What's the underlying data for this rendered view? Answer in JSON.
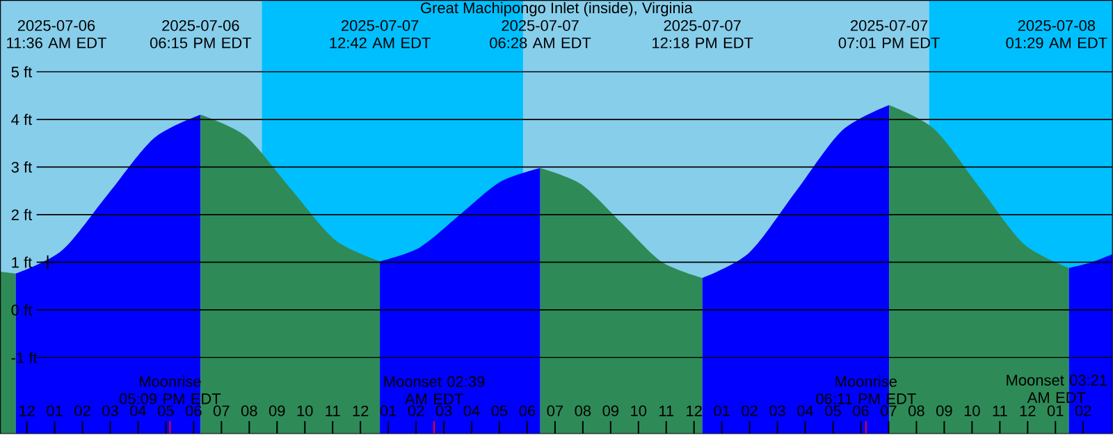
{
  "chart_data": {
    "type": "area",
    "title": "Great Machipongo Inlet (inside), Virginia",
    "xlim": [
      "2025-07-06T11:03",
      "2025-07-08T03:03"
    ],
    "ylim": [
      -2.6,
      6.5
    ],
    "xticks": [
      {
        "value": "2025-07-06T12:00",
        "label": "12"
      },
      {
        "value": "2025-07-06T13:00",
        "label": "01"
      },
      {
        "value": "2025-07-06T14:00",
        "label": "02"
      },
      {
        "value": "2025-07-06T15:00",
        "label": "03"
      },
      {
        "value": "2025-07-06T16:00",
        "label": "04"
      },
      {
        "value": "2025-07-06T17:00",
        "label": "05"
      },
      {
        "value": "2025-07-06T18:00",
        "label": "06"
      },
      {
        "value": "2025-07-06T19:00",
        "label": "07"
      },
      {
        "value": "2025-07-06T20:00",
        "label": "08"
      },
      {
        "value": "2025-07-06T21:00",
        "label": "09"
      },
      {
        "value": "2025-07-06T22:00",
        "label": "10"
      },
      {
        "value": "2025-07-06T23:00",
        "label": "11"
      },
      {
        "value": "2025-07-07T00:00",
        "label": "12"
      },
      {
        "value": "2025-07-07T01:00",
        "label": "01"
      },
      {
        "value": "2025-07-07T02:00",
        "label": "02"
      },
      {
        "value": "2025-07-07T03:00",
        "label": "03"
      },
      {
        "value": "2025-07-07T04:00",
        "label": "04"
      },
      {
        "value": "2025-07-07T05:00",
        "label": "05"
      },
      {
        "value": "2025-07-07T06:00",
        "label": "06"
      },
      {
        "value": "2025-07-07T07:00",
        "label": "07"
      },
      {
        "value": "2025-07-07T08:00",
        "label": "08"
      },
      {
        "value": "2025-07-07T09:00",
        "label": "09"
      },
      {
        "value": "2025-07-07T10:00",
        "label": "10"
      },
      {
        "value": "2025-07-07T11:00",
        "label": "11"
      },
      {
        "value": "2025-07-07T12:00",
        "label": "12"
      },
      {
        "value": "2025-07-07T13:00",
        "label": "01"
      },
      {
        "value": "2025-07-07T14:00",
        "label": "02"
      },
      {
        "value": "2025-07-07T15:00",
        "label": "03"
      },
      {
        "value": "2025-07-07T16:00",
        "label": "04"
      },
      {
        "value": "2025-07-07T17:00",
        "label": "05"
      },
      {
        "value": "2025-07-07T18:00",
        "label": "06"
      },
      {
        "value": "2025-07-07T19:00",
        "label": "07"
      },
      {
        "value": "2025-07-07T20:00",
        "label": "08"
      },
      {
        "value": "2025-07-07T21:00",
        "label": "09"
      },
      {
        "value": "2025-07-07T22:00",
        "label": "10"
      },
      {
        "value": "2025-07-07T23:00",
        "label": "11"
      },
      {
        "value": "2025-07-08T00:00",
        "label": "12"
      },
      {
        "value": "2025-07-08T01:00",
        "label": "01"
      },
      {
        "value": "2025-07-08T02:00",
        "label": "02"
      }
    ],
    "yticks": [
      {
        "value": -1,
        "label": "-1 ft"
      },
      {
        "value": 0,
        "label": "0 ft"
      },
      {
        "value": 1,
        "label": "1 ft"
      },
      {
        "value": 2,
        "label": "2 ft"
      },
      {
        "value": 3,
        "label": "3 ft"
      },
      {
        "value": 4,
        "label": "4 ft"
      },
      {
        "value": 5,
        "label": "5 ft"
      }
    ],
    "grid": "y",
    "bands": [
      {
        "axis": "x",
        "from": "2025-07-06T11:03",
        "to": "2025-07-06T20:27",
        "color": "#87ceeb"
      },
      {
        "axis": "x",
        "from": "2025-07-06T20:27",
        "to": "2025-07-07T05:51",
        "color": "#00bfff"
      },
      {
        "axis": "x",
        "from": "2025-07-07T05:51",
        "to": "2025-07-07T20:27",
        "color": "#87ceeb"
      },
      {
        "axis": "x",
        "from": "2025-07-07T20:27",
        "to": "2025-07-08T03:03",
        "color": "#00bfff"
      }
    ],
    "series": [
      {
        "color": "#2e8b57",
        "x": [
          "2025-07-06T11:03",
          "2025-07-06T11:36"
        ],
        "values": [
          0.8,
          0.76
        ]
      },
      {
        "color": "#0000ff",
        "x": [
          "2025-07-06T11:36",
          "2025-07-06T13:16",
          "2025-07-06T14:55",
          "2025-07-06T16:35",
          "2025-07-06T18:15"
        ],
        "values": [
          0.76,
          1.25,
          2.43,
          3.61,
          4.1
        ]
      },
      {
        "color": "#2e8b57",
        "x": [
          "2025-07-06T18:15",
          "2025-07-06T19:52",
          "2025-07-06T21:28",
          "2025-07-06T23:05",
          "2025-07-07T00:42"
        ],
        "values": [
          4.1,
          3.65,
          2.56,
          1.47,
          1.02
        ]
      },
      {
        "color": "#0000ff",
        "x": [
          "2025-07-07T00:42",
          "2025-07-07T02:08",
          "2025-07-07T03:35",
          "2025-07-07T05:02",
          "2025-07-07T06:28"
        ],
        "values": [
          1.02,
          1.31,
          2.0,
          2.69,
          2.98
        ]
      },
      {
        "color": "#2e8b57",
        "x": [
          "2025-07-07T06:28",
          "2025-07-07T07:56",
          "2025-07-07T09:23",
          "2025-07-07T10:50",
          "2025-07-07T12:18"
        ],
        "values": [
          2.98,
          2.64,
          1.83,
          1.01,
          0.67
        ]
      },
      {
        "color": "#0000ff",
        "x": [
          "2025-07-07T12:18",
          "2025-07-07T13:59",
          "2025-07-07T15:40",
          "2025-07-07T17:20",
          "2025-07-07T19:01"
        ],
        "values": [
          0.67,
          1.2,
          2.49,
          3.77,
          4.3
        ]
      },
      {
        "color": "#2e8b57",
        "x": [
          "2025-07-07T19:01",
          "2025-07-07T20:38",
          "2025-07-07T22:15",
          "2025-07-07T23:52",
          "2025-07-08T01:29"
        ],
        "values": [
          4.3,
          3.8,
          2.59,
          1.38,
          0.88
        ]
      },
      {
        "color": "#0000ff",
        "x": [
          "2025-07-08T01:29",
          "2025-07-08T02:18",
          "2025-07-08T03:03"
        ],
        "values": [
          0.88,
          1.0,
          1.17
        ]
      },
      {
        "type": "scatter",
        "color": "#000000",
        "marker": "cross",
        "x": [
          "2025-07-06T12:45"
        ],
        "values": [
          1
        ]
      }
    ],
    "ref_lines": [
      {
        "axis": "x",
        "value": "2025-07-06T17:09",
        "label": "Moonrise 05:09 PM EDT",
        "color": "#ff0000"
      },
      {
        "axis": "x",
        "value": "2025-07-07T02:39",
        "label": "Moonset 02:39 AM EDT",
        "color": "#ff0000"
      },
      {
        "axis": "x",
        "value": "2025-07-07T18:11",
        "label": "Moonrise 06:11 PM EDT",
        "color": "#ff0000"
      }
    ],
    "annotations": [
      "2025-07-06 11:36 AM EDT",
      "2025-07-06 06:15 PM EDT",
      "2025-07-07 12:42 AM EDT",
      "2025-07-07 06:28 AM EDT",
      "2025-07-07 12:18 PM EDT",
      "2025-07-07 07:01 PM EDT",
      "2025-07-08 01:29 AM EDT",
      "Moonset 03:21 AM EDT"
    ]
  }
}
